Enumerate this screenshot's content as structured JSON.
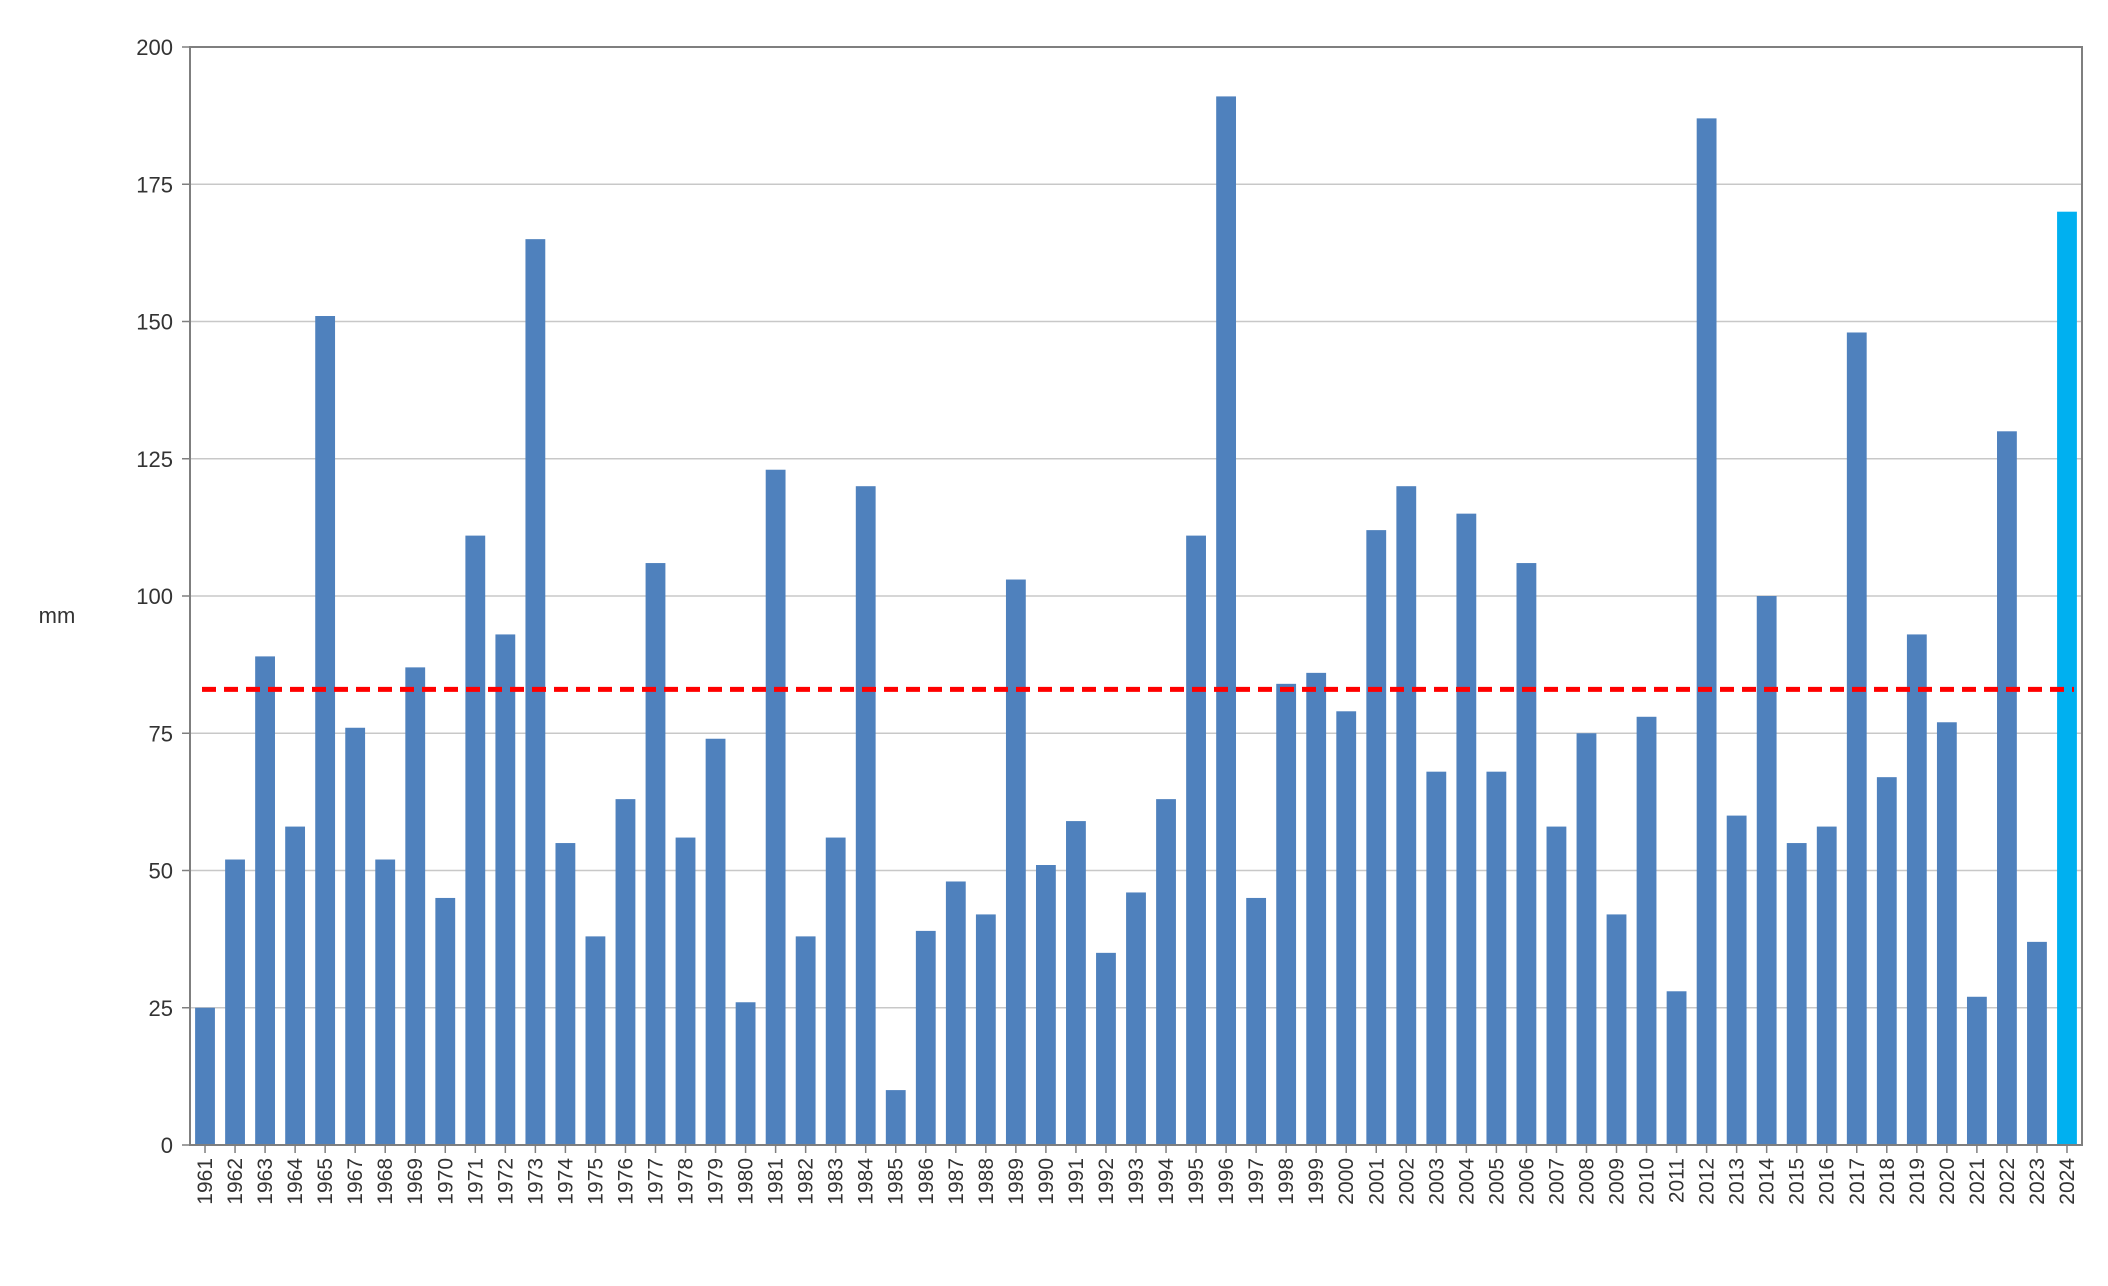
{
  "chart_data": {
    "type": "bar",
    "title": "",
    "xlabel": "",
    "ylabel": "mm",
    "ylim": [
      0,
      200
    ],
    "yticks": [
      0,
      25,
      50,
      75,
      100,
      125,
      150,
      175,
      200
    ],
    "grid": true,
    "legend": "none",
    "categories": [
      "1961",
      "1962",
      "1963",
      "1964",
      "1965",
      "1967",
      "1968",
      "1969",
      "1970",
      "1971",
      "1972",
      "1973",
      "1974",
      "1975",
      "1976",
      "1977",
      "1978",
      "1979",
      "1980",
      "1981",
      "1982",
      "1983",
      "1984",
      "1985",
      "1986",
      "1987",
      "1988",
      "1989",
      "1990",
      "1991",
      "1992",
      "1993",
      "1994",
      "1995",
      "1996",
      "1997",
      "1998",
      "1999",
      "2000",
      "2001",
      "2002",
      "2003",
      "2004",
      "2005",
      "2006",
      "2007",
      "2008",
      "2009",
      "2010",
      "2011",
      "2012",
      "2013",
      "2014",
      "2015",
      "2016",
      "2017",
      "2018",
      "2019",
      "2020",
      "2021",
      "2022",
      "2023",
      "2024"
    ],
    "values": [
      25,
      52,
      89,
      58,
      151,
      76,
      52,
      87,
      45,
      111,
      93,
      165,
      55,
      38,
      63,
      106,
      56,
      74,
      26,
      123,
      38,
      56,
      120,
      10,
      39,
      48,
      42,
      103,
      51,
      59,
      35,
      46,
      63,
      111,
      191,
      45,
      84,
      86,
      79,
      112,
      120,
      68,
      115,
      68,
      106,
      58,
      75,
      42,
      78,
      28,
      187,
      60,
      100,
      55,
      58,
      148,
      67,
      93,
      77,
      27,
      130,
      37,
      170
    ],
    "highlight_category": "2024",
    "reference_line": {
      "value": 83,
      "style": "dashed",
      "color": "#ff0000"
    },
    "colors": {
      "bar": "#4f81bd",
      "highlight": "#00b0f0",
      "grid": "#c8c8c8",
      "axis": "#7f7f7f"
    }
  }
}
